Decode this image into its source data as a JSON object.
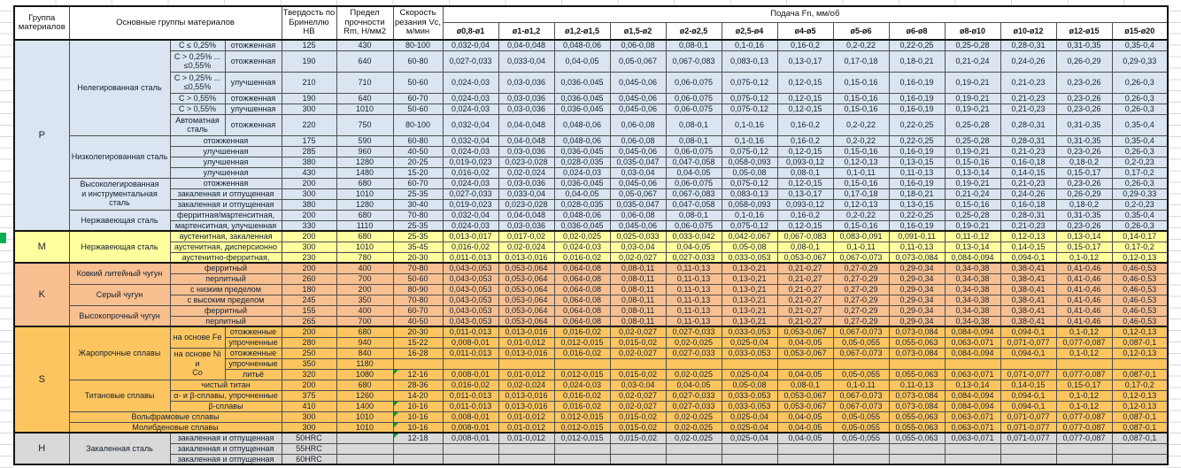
{
  "header": {
    "group": "Группа материалов",
    "main_groups": "Основные группы материалов",
    "hardness": "Твердость по Бринеллю HB",
    "strength": "Предел прочности Rm, Н/мм2",
    "speed": "Скорость резания Vc, м/мин",
    "feed": "Подача Fn, мм/об",
    "diameters": [
      "ø0,8-ø1",
      "ø1-ø1,2",
      "ø1,2-ø1,5",
      "ø1,5-ø2",
      "ø2-ø2,5",
      "ø2,5-ø4",
      "ø4-ø5",
      "ø5-ø6",
      "ø6-ø8",
      "ø8-ø10",
      "ø10-ø12",
      "ø12-ø15",
      "ø15-ø20"
    ],
    "comment_marker_color": "#009a3e"
  },
  "feed_patterns": {
    "A": [
      "0,032-0,04",
      "0,04-0,048",
      "0,048-0,06",
      "0,06-0,08",
      "0,08-0,1",
      "0,1-0,16",
      "0,16-0,2",
      "0,2-0,22",
      "0,22-0,25",
      "0,25-0,28",
      "0,28-0,31",
      "0,31-0,35",
      "0,35-0,4"
    ],
    "B": [
      "0,027-0,033",
      "0,033-0,04",
      "0,04-0,05",
      "0,05-0,067",
      "0,067-0,083",
      "0,083-0,13",
      "0,13-0,17",
      "0,17-0,18",
      "0,18-0,21",
      "0,21-0,24",
      "0,24-0,26",
      "0,26-0,29",
      "0,29-0,33"
    ],
    "C": [
      "0,024-0,03",
      "0,03-0,036",
      "0,036-0,045",
      "0,045-0,06",
      "0,06-0,075",
      "0,075-0,12",
      "0,12-0,15",
      "0,15-0,16",
      "0,16-0,19",
      "0,19-0,21",
      "0,21-0,23",
      "0,23-0,26",
      "0,26-0,3"
    ],
    "D": [
      "0,019-0,023",
      "0,023-0,028",
      "0,028-0,035",
      "0,035-0,047",
      "0,047-0,058",
      "0,058-0,093",
      "0,093-0,12",
      "0,12-0,13",
      "0,13-0,15",
      "0,15-0,16",
      "0,16-0,18",
      "0,18-0,2",
      "0,2-0,23"
    ],
    "E": [
      "0,016-0,02",
      "0,02-0,024",
      "0,024-0,03",
      "0,03-0,04",
      "0,04-0,05",
      "0,05-0,08",
      "0,08-0,1",
      "0,1-0,11",
      "0,11-0,13",
      "0,13-0,14",
      "0,14-0,15",
      "0,15-0,17",
      "0,17-0,2"
    ],
    "F": [
      "0,013-0,017",
      "0,017-0,02",
      "0,02-0,025",
      "0,025-0,033",
      "0,033-0,042",
      "0,042-0,067",
      "0,067-0,083",
      "0,083-0,091",
      "0,091-0,11",
      "0,11-0,12",
      "0,12-0,13",
      "0,13-0,14",
      "0,14-0,17"
    ],
    "G": [
      "0,011-0,013",
      "0,013-0,016",
      "0,016-0,02",
      "0,02-0,027",
      "0,027-0,033",
      "0,033-0,053",
      "0,053-0,067",
      "0,067-0,073",
      "0,073-0,084",
      "0,084-0,094",
      "0,094-0,1",
      "0,1-0,12",
      "0,12-0,13"
    ],
    "H": [
      "0,008-0,01",
      "0,01-0,012",
      "0,012-0,015",
      "0,015-0,02",
      "0,02-0,025",
      "0,025-0,04",
      "0,04-0,05",
      "0,05-0,055",
      "0,055-0,063",
      "0,063-0,071",
      "0,071-0,077",
      "0,077-0,087",
      "0,087-0,1"
    ],
    "K": [
      "0,043-0,053",
      "0,053-0,064",
      "0,064-0,08",
      "0,08-0,11",
      "0,11-0,13",
      "0,13-0,21",
      "0,21-0,27",
      "0,27-0,29",
      "0,29-0,34",
      "0,34-0,38",
      "0,38-0,41",
      "0,41-0,46",
      "0,46-0,53"
    ],
    "X": [
      "",
      "",
      "",
      "",
      "",
      "",
      "",
      "",
      "",
      "",
      "",
      "",
      ""
    ]
  },
  "sections": [
    {
      "letter": "P",
      "color": "#dbe5f1",
      "rows": [
        {
          "m": "Нелегированная сталь",
          "mrs": 6,
          "c": "C ≤ 0,25%",
          "d": "отожженная",
          "hb": "125",
          "rm": "430",
          "vc": "80-100",
          "p": "A",
          "h": 1
        },
        {
          "c": "C > 0,25% ...\n≤0,55%",
          "d": "отожженная",
          "hb": "190",
          "rm": "640",
          "vc": "60-80",
          "p": "B",
          "h": 2
        },
        {
          "c": "C > 0,25% ...\n≤0,55%",
          "d": "улучшенная",
          "hb": "210",
          "rm": "710",
          "vc": "50-60",
          "p": "C",
          "h": 2
        },
        {
          "c": "C > 0,55%",
          "d": "отожженная",
          "hb": "190",
          "rm": "640",
          "vc": "60-70",
          "p": "C",
          "h": 1
        },
        {
          "c": "C > 0,55%",
          "d": "улучшенная",
          "hb": "300",
          "rm": "1010",
          "vc": "50-60",
          "p": "C",
          "h": 1
        },
        {
          "c": "Автоматная\nсталь",
          "d": "отожженная",
          "hb": "220",
          "rm": "750",
          "vc": "80-100",
          "p": "A",
          "h": 2
        },
        {
          "m": "Низколегированная сталь",
          "mrs": 4,
          "d": "отожженная",
          "cd": 2,
          "hb": "175",
          "rm": "590",
          "vc": "60-80",
          "p": "A",
          "h": 1
        },
        {
          "d": "улучшенная",
          "cd": 2,
          "hb": "285",
          "rm": "960",
          "vc": "40-50",
          "p": "C",
          "h": 1
        },
        {
          "d": "улучшенная",
          "cd": 2,
          "hb": "380",
          "rm": "1280",
          "vc": "20-25",
          "p": "D",
          "h": 1
        },
        {
          "d": "улучшенная",
          "cd": 2,
          "hb": "430",
          "rm": "1480",
          "vc": "15-20",
          "p": "E",
          "h": 1
        },
        {
          "m": "Высоколегированная\nи инструментальная сталь",
          "mrs": 3,
          "d": "отожженная",
          "cd": 2,
          "hb": "200",
          "rm": "680",
          "vc": "60-70",
          "p": "C",
          "h": 1
        },
        {
          "d": "закаленная и отпущенная",
          "cd": 2,
          "hb": "300",
          "rm": "1010",
          "vc": "25-35",
          "p": "B",
          "h": 1
        },
        {
          "d": "закаленная и отпущенная",
          "cd": 2,
          "hb": "380",
          "rm": "1280",
          "vc": "30-40",
          "p": "D",
          "h": 1
        },
        {
          "m": "Нержавеющая сталь",
          "mrs": 2,
          "d": "ферритная/мартенситная,",
          "cd": 2,
          "hb": "200",
          "rm": "680",
          "vc": "70-80",
          "p": "A",
          "h": 1
        },
        {
          "d": "мартенситная, улучшенная",
          "cd": 2,
          "hb": "330",
          "rm": "1110",
          "vc": "25-35",
          "p": "C",
          "h": 1
        }
      ]
    },
    {
      "letter": "M",
      "color": "#ffff9e",
      "rows": [
        {
          "m": "Нержавеющая сталь",
          "mrs": 3,
          "d": "аустенитная, закаленная",
          "cd": 2,
          "hb": "200",
          "rm": "680",
          "vc": "25-35",
          "p": "F",
          "h": 1
        },
        {
          "d": "аустенитная, дисперсионно",
          "cd": 2,
          "hb": "300",
          "rm": "1010",
          "vc": "35-45",
          "p": "E",
          "h": 1
        },
        {
          "d": "аустенитно-ферритная,",
          "cd": 2,
          "hb": "230",
          "rm": "780",
          "vc": "20-30",
          "p": "G",
          "h": 1
        }
      ]
    },
    {
      "letter": "K",
      "color": "#f8bf90",
      "rows": [
        {
          "m": "Ковкий литейный чугун",
          "mrs": 2,
          "d": "ферритный",
          "cd": 2,
          "hb": "200",
          "rm": "400",
          "vc": "70-80",
          "p": "K",
          "h": 1
        },
        {
          "d": "перлитный",
          "cd": 2,
          "hb": "260",
          "rm": "700",
          "vc": "50-60",
          "p": "K",
          "h": 1
        },
        {
          "m": "Серый чугун",
          "mrs": 2,
          "d": "с низким пределом",
          "cd": 2,
          "hb": "180",
          "rm": "200",
          "vc": "80-90",
          "p": "K",
          "h": 1
        },
        {
          "d": "с высоким пределом",
          "cd": 2,
          "hb": "245",
          "rm": "350",
          "vc": "70-80",
          "p": "K",
          "h": 1
        },
        {
          "m": "Высокопрочный чугун",
          "mrs": 2,
          "d": "ферритный",
          "cd": 2,
          "hb": "155",
          "rm": "400",
          "vc": "60-70",
          "p": "K",
          "h": 1
        },
        {
          "d": "перлитный",
          "cd": 2,
          "hb": "265",
          "rm": "700",
          "vc": "40-50",
          "p": "K",
          "h": 1
        }
      ]
    },
    {
      "letter": "S",
      "color": "#fdc55f",
      "rows": [
        {
          "m": "Жаропрочные сплавы",
          "mrs": 5,
          "c": "на основе Fe",
          "crs": 2,
          "d": "отожженные",
          "hb": "200",
          "rm": "680",
          "vc": "20-30",
          "p": "G",
          "h": 1
        },
        {
          "d": "упрочненные",
          "hb": "280",
          "rm": "940",
          "vc": "15-22",
          "p": "H",
          "h": 1
        },
        {
          "c": "на основе Ni и\nСо",
          "crs": 3,
          "d": "отожженные",
          "hb": "250",
          "rm": "840",
          "vc": "16-28",
          "p": "G",
          "h": 1
        },
        {
          "d": "упрочненные",
          "hb": "350",
          "rm": "1180",
          "vc": "",
          "p": "X",
          "h": 1
        },
        {
          "d": "литьё",
          "hb": "320",
          "rm": "1080",
          "vc": "12-16",
          "vcm": true,
          "p": "H",
          "h": 1
        },
        {
          "m": "Титановые сплавы",
          "mrs": 3,
          "d": "чистый титан",
          "cd": 2,
          "hb": "200",
          "rm": "680",
          "vc": "28-36",
          "p": "E",
          "h": 1
        },
        {
          "d": "α- и β-сплавы, упрочненные",
          "cd": 2,
          "hb": "375",
          "rm": "1260",
          "vc": "14-20",
          "p": "G",
          "h": 1
        },
        {
          "d": "β-сплавы",
          "cd": 2,
          "hb": "410",
          "rm": "1400",
          "vc": "10-16",
          "vcm": true,
          "p": "G",
          "h": 1
        },
        {
          "d": "Вольфрамовые сплавы",
          "cd": 3,
          "hb": "300",
          "rm": "1010",
          "vc": "10-16",
          "vcm": true,
          "p": "H",
          "h": 1
        },
        {
          "d": "Молибденовые сплавы",
          "cd": 3,
          "hb": "300",
          "rm": "1010",
          "vc": "10-16",
          "vcm": true,
          "p": "H",
          "h": 1
        }
      ]
    },
    {
      "letter": "H",
      "color": "#d9d9d9",
      "rows": [
        {
          "m": "Закаленная сталь",
          "mrs": 3,
          "d": "закаленная и отпущенная",
          "cd": 2,
          "hb": "50HRC",
          "rm": "",
          "vc": "12-18",
          "vcm": true,
          "p": "H",
          "h": 1
        },
        {
          "d": "закаленная и отпущенная",
          "cd": 2,
          "hb": "55HRC",
          "rm": "",
          "vc": "",
          "p": "X",
          "h": 1
        },
        {
          "d": "закаленная и отпущенная",
          "cd": 2,
          "hb": "60HRC",
          "rm": "",
          "vc": "",
          "p": "X",
          "h": 1
        }
      ]
    }
  ]
}
